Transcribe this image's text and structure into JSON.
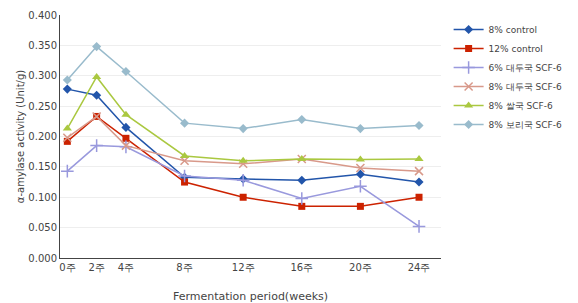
{
  "chart_data": {
    "type": "line",
    "x": [
      0,
      2,
      4,
      8,
      12,
      16,
      20,
      24
    ],
    "xlim": [
      -0.5,
      25.5
    ],
    "xticks": [
      {
        "value": 0,
        "label": "0주"
      },
      {
        "value": 2,
        "label": "2주"
      },
      {
        "value": 4,
        "label": "4주"
      },
      {
        "value": 8,
        "label": "8주"
      },
      {
        "value": 12,
        "label": "12주"
      },
      {
        "value": 16,
        "label": "16주"
      },
      {
        "value": 20,
        "label": "20주"
      },
      {
        "value": 24,
        "label": "24주"
      }
    ],
    "ylim": [
      0.0,
      0.4
    ],
    "yticks": [
      {
        "value": 0.0,
        "label": "0.000"
      },
      {
        "value": 0.05,
        "label": "0.050"
      },
      {
        "value": 0.1,
        "label": "0.100"
      },
      {
        "value": 0.15,
        "label": "0.150"
      },
      {
        "value": 0.2,
        "label": "0.200"
      },
      {
        "value": 0.25,
        "label": "0.250"
      },
      {
        "value": 0.3,
        "label": "0.300"
      },
      {
        "value": 0.35,
        "label": "0.350"
      },
      {
        "value": 0.4,
        "label": "0.400"
      }
    ],
    "x_label": "Fermentation period(weeks)",
    "y_label": "α-amylase activity (Unit/g)",
    "grid": true,
    "legend": "right",
    "series": [
      {
        "name": "8% control",
        "color": "#2255aa",
        "marker": "diamond",
        "values": [
          0.278,
          0.268,
          0.215,
          0.133,
          0.13,
          0.128,
          0.138,
          0.125
        ]
      },
      {
        "name": "12% control",
        "color": "#cc2200",
        "marker": "square",
        "values": [
          0.192,
          0.233,
          0.197,
          0.125,
          0.1,
          0.085,
          0.085,
          0.1
        ]
      },
      {
        "name": "6% 대두국 SCF-6",
        "color": "#9999dd",
        "marker": "plus",
        "values": [
          0.143,
          0.185,
          0.183,
          0.135,
          0.128,
          0.098,
          0.118,
          0.052
        ]
      },
      {
        "name": "8% 대두국 SCF-6",
        "color": "#d8998a",
        "marker": "x",
        "values": [
          0.198,
          0.233,
          0.185,
          0.16,
          0.155,
          0.163,
          0.148,
          0.143
        ]
      },
      {
        "name": "8% 쌀국 SCF-6",
        "color": "#aac840",
        "marker": "triangle",
        "values": [
          0.213,
          0.298,
          0.236,
          0.168,
          0.16,
          0.163,
          0.162,
          0.163
        ]
      },
      {
        "name": "8% 보리국 SCF-6",
        "color": "#99bbcc",
        "marker": "diamond",
        "values": [
          0.293,
          0.348,
          0.307,
          0.222,
          0.213,
          0.228,
          0.213,
          0.218
        ]
      }
    ]
  }
}
